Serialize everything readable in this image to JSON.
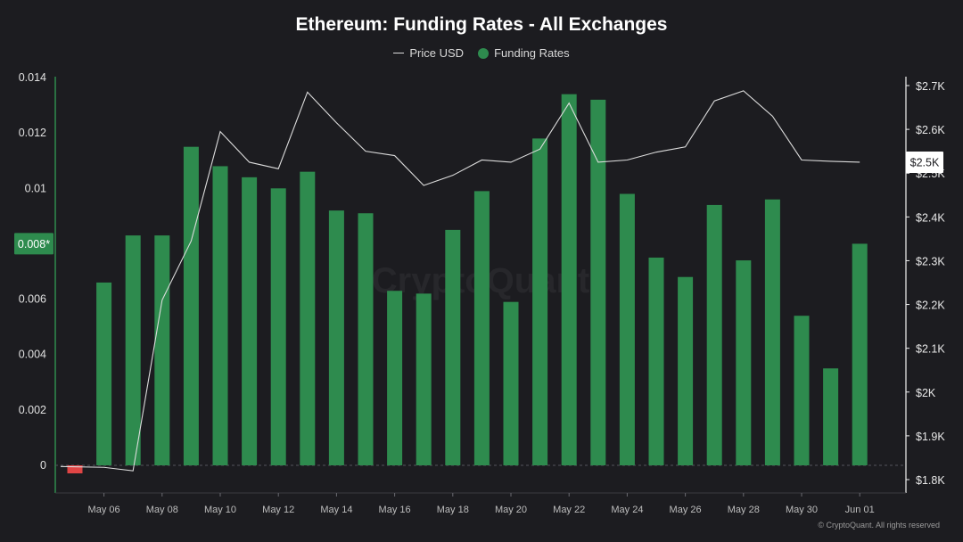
{
  "chart_data": {
    "type": "bar",
    "title": "Ethereum: Funding Rates - All Exchanges",
    "legend": [
      {
        "name": "Price USD",
        "marker": "line"
      },
      {
        "name": "Funding Rates",
        "marker": "dot"
      }
    ],
    "x_ticks": [
      "May 06",
      "May 08",
      "May 10",
      "May 12",
      "May 14",
      "May 16",
      "May 18",
      "May 20",
      "May 22",
      "May 24",
      "May 26",
      "May 28",
      "May 30",
      "Jun 01"
    ],
    "y_left_ticks": [
      "0",
      "0.002",
      "0.004",
      "0.006",
      "0.008",
      "0.01",
      "0.012",
      "0.014"
    ],
    "y_right_ticks": [
      "$1.8K",
      "$1.9K",
      "$2K",
      "$2.1K",
      "$2.2K",
      "$2.3K",
      "$2.4K",
      "$2.5K",
      "$2.6K",
      "$2.7K"
    ],
    "y_left_range": [
      -0.0007,
      0.014
    ],
    "y_right_range": [
      1800,
      2700
    ],
    "categories": [
      "May 05",
      "May 06",
      "May 07",
      "May 08",
      "May 09",
      "May 10",
      "May 11",
      "May 12",
      "May 13",
      "May 14",
      "May 15",
      "May 16",
      "May 17",
      "May 18",
      "May 19",
      "May 20",
      "May 21",
      "May 22",
      "May 23",
      "May 24",
      "May 25",
      "May 26",
      "May 27",
      "May 28",
      "May 29",
      "May 30",
      "May 31",
      "Jun 01"
    ],
    "series": [
      {
        "name": "Funding Rates",
        "axis": "left",
        "values": [
          -0.0002,
          0.0066,
          0.0083,
          0.0083,
          0.0115,
          0.0108,
          0.0104,
          0.01,
          0.0106,
          0.0092,
          0.0091,
          0.0063,
          0.0062,
          0.0085,
          0.0099,
          0.0059,
          0.0118,
          0.0134,
          0.0132,
          0.0098,
          0.0075,
          0.0068,
          0.0094,
          0.0074,
          0.0096,
          0.0054,
          0.0035,
          0.008
        ]
      },
      {
        "name": "Price USD",
        "axis": "right",
        "values": [
          1830,
          1828,
          1820,
          2210,
          2345,
          2595,
          2525,
          2510,
          2685,
          2615,
          2550,
          2540,
          2472,
          2495,
          2530,
          2525,
          2555,
          2660,
          2525,
          2530,
          2548,
          2560,
          2665,
          2688,
          2630,
          2530,
          2527,
          2525
        ]
      }
    ],
    "highlight_left": "0.008*",
    "highlight_right": "$2.5K",
    "colors": {
      "bar_positive": "#2e8b4e",
      "bar_negative": "#e04545",
      "price_line": "#dcdcdc",
      "background": "#1c1c20",
      "axis_accent": "#2e8b4e"
    },
    "grid": false
  },
  "watermark": "CryptoQuant",
  "footer": "© CryptoQuant. All rights reserved"
}
